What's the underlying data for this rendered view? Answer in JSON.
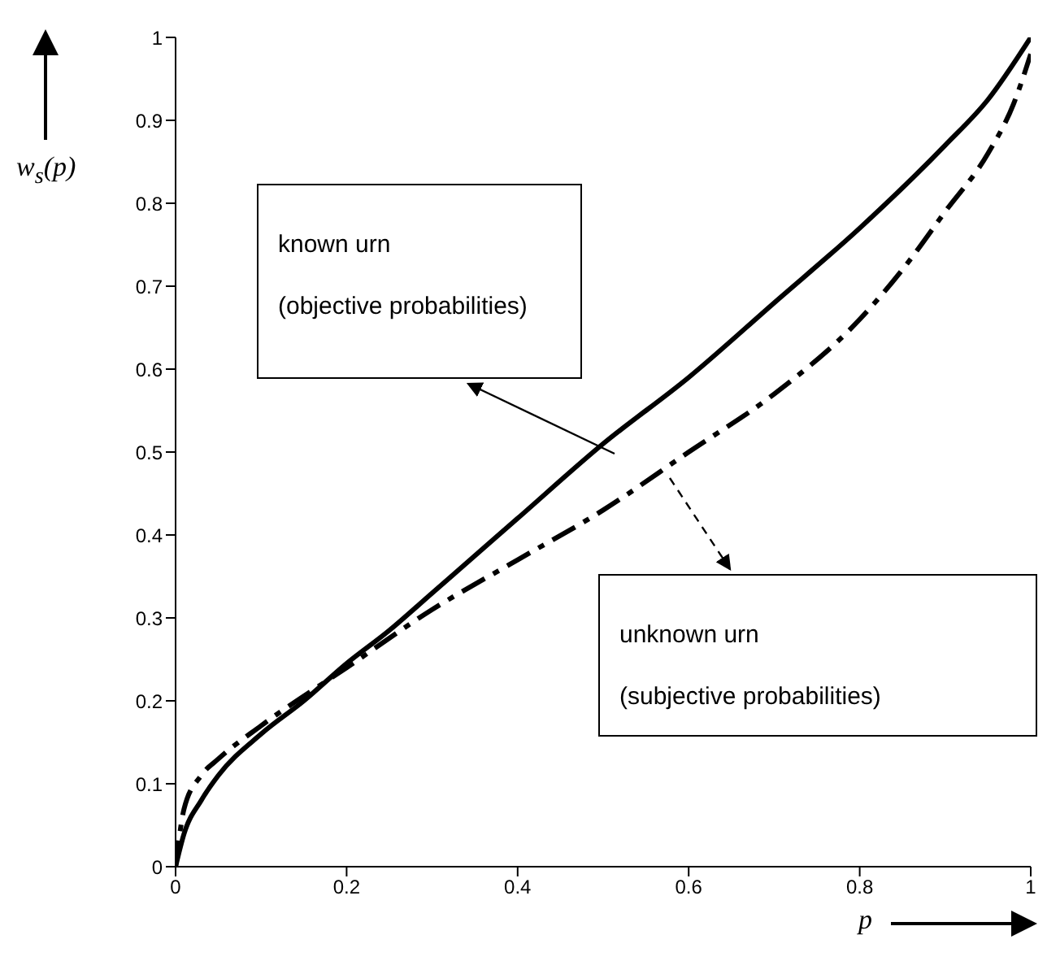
{
  "chart_data": {
    "type": "line",
    "xlabel": "p",
    "ylabel": "w$_{s}$(p)",
    "xlim": [
      0,
      1
    ],
    "ylim": [
      0,
      1
    ],
    "xticks": [
      0,
      0.2,
      0.4,
      0.6,
      0.8,
      1
    ],
    "yticks": [
      0,
      0.1,
      0.2,
      0.3,
      0.4,
      0.5,
      0.6,
      0.7,
      0.8,
      0.9,
      1
    ],
    "marker": "none",
    "annotations": [
      "known urn",
      "(objective probabilities)",
      "unknown urn",
      "(subjective probabilities)"
    ],
    "series": [
      {
        "color": "#000000",
        "line_style": "solid",
        "x": [
          0,
          0.01,
          0.03,
          0.05,
          0.1,
          0.15,
          0.2,
          0.25,
          0.3,
          0.35,
          0.4,
          0.5,
          0.6,
          0.7,
          0.8,
          0.9,
          0.95,
          1
        ],
        "values": [
          0,
          0.04,
          0.08,
          0.11,
          0.16,
          0.2,
          0.245,
          0.285,
          0.33,
          0.375,
          0.42,
          0.51,
          0.59,
          0.68,
          0.77,
          0.87,
          0.925,
          1
        ]
      },
      {
        "color": "#000000",
        "line_style": "dashed",
        "x": [
          0,
          0.01,
          0.03,
          0.05,
          0.1,
          0.2,
          0.3,
          0.4,
          0.5,
          0.6,
          0.7,
          0.8,
          0.85,
          0.9,
          0.95,
          0.98,
          1
        ],
        "values": [
          0,
          0.07,
          0.11,
          0.13,
          0.17,
          0.24,
          0.31,
          0.37,
          0.43,
          0.5,
          0.57,
          0.66,
          0.72,
          0.79,
          0.86,
          0.92,
          0.98
        ]
      }
    ]
  }
}
